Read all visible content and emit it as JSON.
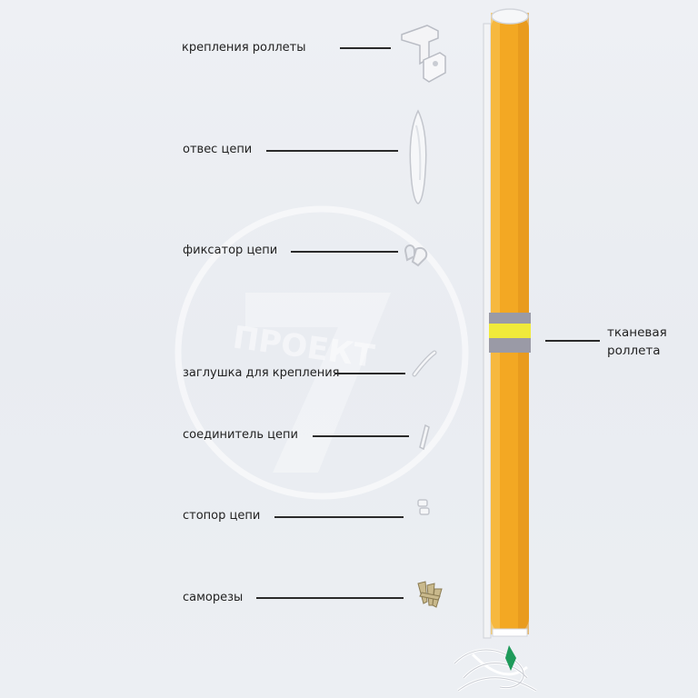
{
  "labels": {
    "mounts": "крепления роллеты",
    "chain_weight": "отвес цепи",
    "chain_lock": "фиксатор цепи",
    "mount_cap": "заглушка для крепления",
    "chain_connector": "соединитель цепи",
    "chain_stopper": "стопор цепи",
    "screws": "саморезы",
    "fabric_roller_line1": "тканевая",
    "fabric_roller_line2": "роллета"
  },
  "watermark": {
    "logo_text": "ПРОЕКТ",
    "logo_digit": "7"
  },
  "colors": {
    "background": "#eceff3",
    "roller_orange": "#f3a823",
    "band_grey": "#9a9aa6",
    "band_yellow": "#f0ea3a",
    "label_text": "#222222"
  }
}
